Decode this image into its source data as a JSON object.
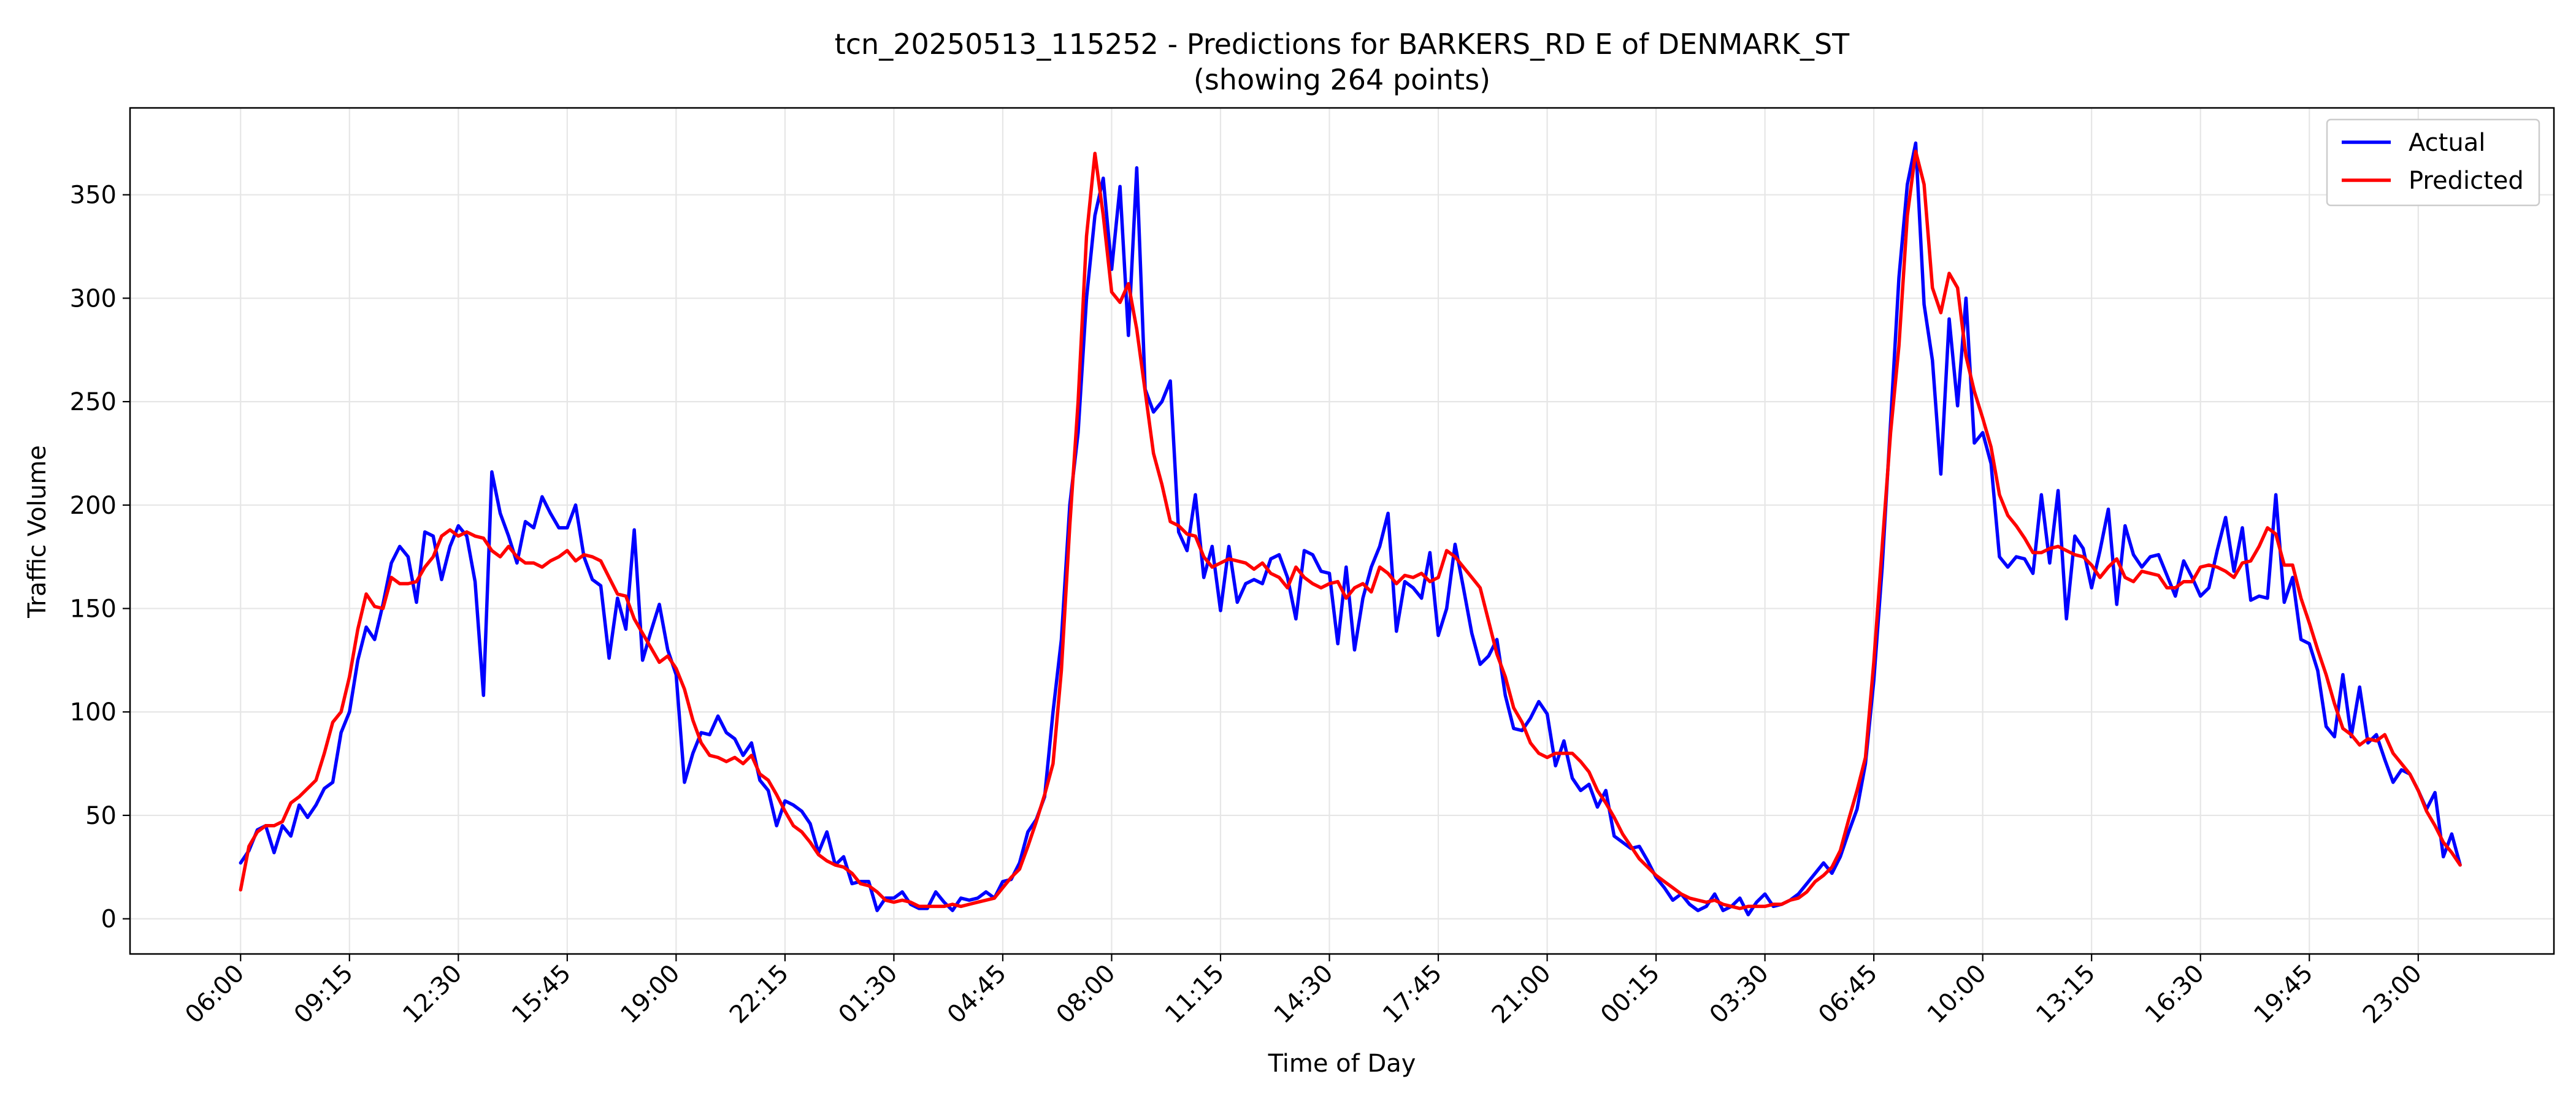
{
  "chart_data": {
    "type": "line",
    "title": "tcn_20250513_115252 - Predictions for BARKERS_RD E of DENMARK_ST",
    "subtitle": "(showing 264 points)",
    "xlabel": "Time of Day",
    "ylabel": "Traffic Volume",
    "ylim": [
      -17,
      392
    ],
    "xlim": [
      -13.2,
      276.2
    ],
    "yticks": [
      0,
      50,
      100,
      150,
      200,
      250,
      300,
      350
    ],
    "xticks": [
      {
        "index": 0,
        "label": "06:00"
      },
      {
        "index": 13,
        "label": "09:15"
      },
      {
        "index": 26,
        "label": "12:30"
      },
      {
        "index": 39,
        "label": "15:45"
      },
      {
        "index": 52,
        "label": "19:00"
      },
      {
        "index": 65,
        "label": "22:15"
      },
      {
        "index": 78,
        "label": "01:30"
      },
      {
        "index": 91,
        "label": "04:45"
      },
      {
        "index": 104,
        "label": "08:00"
      },
      {
        "index": 117,
        "label": "11:15"
      },
      {
        "index": 130,
        "label": "14:30"
      },
      {
        "index": 143,
        "label": "17:45"
      },
      {
        "index": 156,
        "label": "21:00"
      },
      {
        "index": 169,
        "label": "00:15"
      },
      {
        "index": 182,
        "label": "03:30"
      },
      {
        "index": 195,
        "label": "06:45"
      },
      {
        "index": 208,
        "label": "10:00"
      },
      {
        "index": 221,
        "label": "13:15"
      },
      {
        "index": 234,
        "label": "16:30"
      },
      {
        "index": 247,
        "label": "19:45"
      },
      {
        "index": 260,
        "label": "23:00"
      }
    ],
    "grid": true,
    "legend_position": "top-right",
    "series": [
      {
        "name": "Actual",
        "color": "#0000ff",
        "values": [
          27,
          33,
          43,
          45,
          32,
          45,
          40,
          55,
          49,
          55,
          63,
          66,
          90,
          100,
          125,
          141,
          135,
          152,
          172,
          180,
          175,
          153,
          187,
          185,
          164,
          180,
          190,
          185,
          163,
          108,
          216,
          196,
          185,
          172,
          192,
          189,
          204,
          196,
          189,
          189,
          200,
          175,
          164,
          161,
          126,
          155,
          140,
          188,
          125,
          139,
          152,
          130,
          118,
          66,
          80,
          90,
          89,
          98,
          90,
          87,
          79,
          85,
          67,
          62,
          45,
          57,
          55,
          52,
          46,
          32,
          42,
          26,
          30,
          17,
          18,
          18,
          4,
          10,
          10,
          13,
          7,
          5,
          5,
          13,
          8,
          4,
          10,
          9,
          10,
          13,
          10,
          18,
          19,
          27,
          42,
          48,
          59,
          100,
          135,
          200,
          235,
          300,
          340,
          358,
          314,
          354,
          282,
          363,
          256,
          245,
          250,
          260,
          187,
          178,
          205,
          165,
          180,
          149,
          180,
          153,
          162,
          164,
          162,
          174,
          176,
          165,
          145,
          178,
          176,
          168,
          167,
          133,
          170,
          130,
          155,
          170,
          180,
          196,
          139,
          163,
          160,
          155,
          177,
          137,
          150,
          181,
          160,
          138,
          123,
          127,
          135,
          108,
          92,
          91,
          97,
          105,
          99,
          74,
          86,
          68,
          62,
          65,
          54,
          62,
          40,
          37,
          34,
          35,
          28,
          20,
          15,
          9,
          12,
          7,
          4,
          6,
          12,
          4,
          6,
          10,
          2,
          8,
          12,
          6,
          7,
          9,
          12,
          17,
          22,
          27,
          22,
          30,
          42,
          53,
          75,
          115,
          170,
          240,
          310,
          355,
          375,
          297,
          270,
          215,
          290,
          248,
          300,
          230,
          235,
          220,
          175,
          170,
          175,
          174,
          167,
          205,
          172,
          207,
          145,
          185,
          179,
          160,
          178,
          198,
          152,
          190,
          176,
          170,
          175,
          176,
          166,
          156,
          173,
          165,
          156,
          160,
          178,
          194,
          168,
          189,
          154,
          156,
          155,
          205,
          153,
          165,
          135,
          133,
          120,
          93,
          88,
          118,
          88,
          112,
          85,
          89,
          77,
          66,
          72,
          70,
          62,
          53,
          61,
          30,
          41,
          26
        ],
        "bind_label": "legend.actual"
      },
      {
        "name": "Predicted",
        "color": "#ff0000",
        "values": [
          14,
          35,
          42,
          45,
          45,
          47,
          56,
          59,
          63,
          67,
          80,
          95,
          100,
          117,
          140,
          157,
          151,
          150,
          165,
          162,
          162,
          163,
          170,
          175,
          185,
          188,
          185,
          187,
          185,
          184,
          178,
          175,
          180,
          175,
          172,
          172,
          170,
          173,
          175,
          178,
          173,
          176,
          175,
          173,
          165,
          157,
          156,
          145,
          138,
          131,
          124,
          127,
          121,
          111,
          96,
          85,
          79,
          78,
          76,
          78,
          75,
          79,
          70,
          67,
          60,
          52,
          45,
          42,
          37,
          31,
          28,
          26,
          25,
          22,
          17,
          16,
          13,
          9,
          8,
          9,
          8,
          6,
          6,
          6,
          6,
          7,
          6,
          7,
          8,
          9,
          10,
          15,
          20,
          24,
          35,
          47,
          60,
          75,
          120,
          190,
          250,
          330,
          370,
          340,
          303,
          298,
          307,
          285,
          255,
          225,
          210,
          192,
          190,
          186,
          185,
          175,
          170,
          172,
          174,
          173,
          172,
          169,
          172,
          167,
          165,
          160,
          170,
          165,
          162,
          160,
          162,
          163,
          155,
          160,
          162,
          158,
          170,
          167,
          162,
          166,
          165,
          167,
          163,
          165,
          178,
          175,
          170,
          165,
          160,
          144,
          128,
          117,
          102,
          95,
          85,
          80,
          78,
          80,
          80,
          80,
          76,
          71,
          62,
          56,
          49,
          41,
          35,
          29,
          25,
          21,
          18,
          15,
          12,
          10,
          9,
          8,
          9,
          7,
          6,
          5,
          6,
          6,
          6,
          7,
          7,
          9,
          10,
          13,
          18,
          21,
          25,
          33,
          48,
          62,
          78,
          124,
          180,
          235,
          277,
          340,
          371,
          355,
          305,
          293,
          312,
          305,
          272,
          255,
          242,
          228,
          205,
          195,
          190,
          184,
          177,
          177,
          179,
          180,
          178,
          176,
          175,
          171,
          165,
          170,
          174,
          165,
          163,
          168,
          167,
          166,
          160,
          160,
          163,
          163,
          170,
          171,
          170,
          168,
          165,
          172,
          173,
          180,
          189,
          186,
          171,
          171,
          155,
          143,
          130,
          118,
          104,
          92,
          89,
          84,
          87,
          86,
          89,
          80,
          75,
          70,
          62,
          52,
          45,
          37,
          32,
          26
        ],
        "bind_label": "legend.predicted"
      }
    ]
  },
  "legend": {
    "actual": "Actual",
    "predicted": "Predicted"
  }
}
